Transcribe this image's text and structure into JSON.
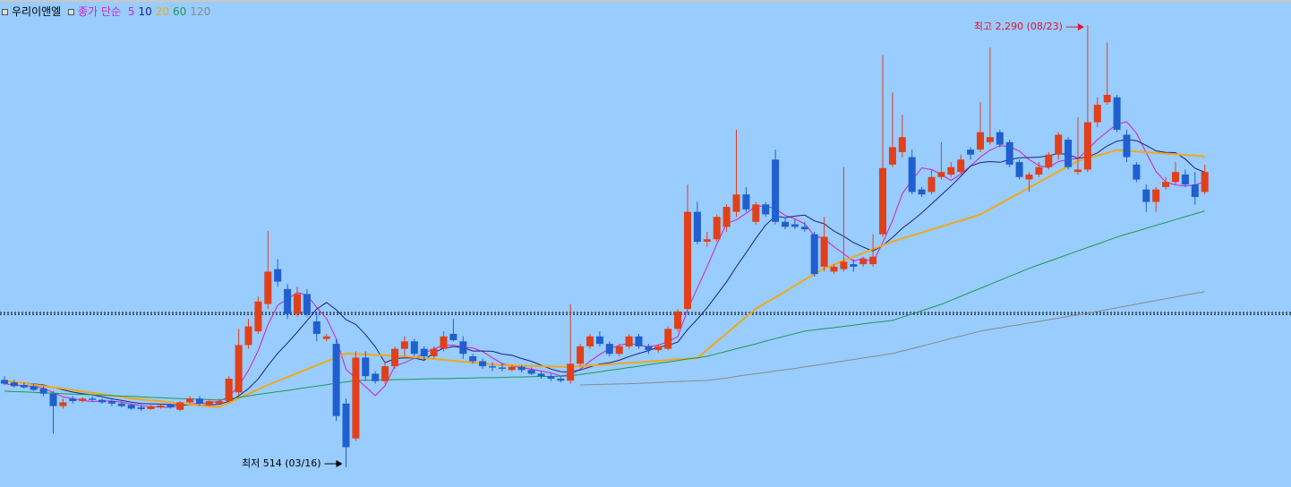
{
  "chart_data": {
    "type": "candlestick",
    "title": "우리이앤엘",
    "ma_label": "종가 단순",
    "ylim": [
      435,
      2391
    ],
    "reference_line": 1132,
    "up_color": "#e0401a",
    "down_color": "#1f5fcf",
    "open": [
      865,
      855,
      845,
      840,
      830,
      810,
      760,
      790,
      780,
      790,
      785,
      780,
      770,
      765,
      755,
      748,
      755,
      765,
      745,
      775,
      790,
      765,
      770,
      780,
      815,
      1005,
      1060,
      1170,
      1310,
      1230,
      1130,
      1210,
      1100,
      1030,
      1010,
      770,
      630,
      955,
      890,
      860,
      920,
      990,
      1020,
      990,
      960,
      990,
      1050,
      1020,
      960,
      940,
      920,
      915,
      905,
      918,
      905,
      890,
      880,
      870,
      862,
      930,
      1000,
      1040,
      1010,
      970,
      1000,
      1040,
      1000,
      985,
      990,
      1070,
      1150,
      1540,
      1420,
      1430,
      1480,
      1540,
      1610,
      1500,
      1570,
      1750,
      1500,
      1490,
      1480,
      1450,
      1320,
      1300,
      1310,
      1330,
      1330,
      1330,
      1450,
      1730,
      1780,
      1760,
      1630,
      1620,
      1680,
      1690,
      1700,
      1790,
      1790,
      1820,
      1860,
      1820,
      1740,
      1670,
      1690,
      1720,
      1770,
      1830,
      1700,
      1710,
      1900,
      1980,
      2000,
      1850,
      1730,
      1630,
      1580,
      1640,
      1660,
      1690,
      1650,
      1620
    ],
    "high": [
      880,
      865,
      855,
      850,
      840,
      820,
      790,
      800,
      795,
      800,
      790,
      790,
      780,
      770,
      765,
      765,
      768,
      770,
      780,
      800,
      800,
      785,
      790,
      880,
      1070,
      1110,
      1200,
      1464,
      1350,
      1250,
      1240,
      1230,
      1140,
      1050,
      1030,
      790,
      980,
      980,
      900,
      940,
      1000,
      1040,
      1030,
      1000,
      1000,
      1060,
      1110,
      1040,
      970,
      950,
      935,
      930,
      925,
      925,
      915,
      900,
      890,
      880,
      1170,
      1010,
      1050,
      1060,
      1020,
      1010,
      1050,
      1050,
      1010,
      1010,
      1080,
      1150,
      1650,
      1580,
      1460,
      1530,
      1570,
      1870,
      1640,
      1580,
      1580,
      1790,
      1520,
      1510,
      1500,
      1460,
      1520,
      1330,
      1720,
      1350,
      1360,
      1450,
      2170,
      2020,
      1930,
      1790,
      1640,
      1710,
      1820,
      1740,
      1770,
      1800,
      1980,
      2200,
      1870,
      1830,
      1750,
      1700,
      1740,
      1780,
      1860,
      1840,
      1920,
      2290,
      2000,
      2220,
      2010,
      1870,
      1740,
      1650,
      1640,
      1680,
      1740,
      1710,
      1700,
      1730
    ],
    "low": [
      845,
      835,
      830,
      820,
      800,
      650,
      750,
      770,
      775,
      780,
      770,
      760,
      755,
      745,
      740,
      745,
      750,
      750,
      740,
      770,
      760,
      760,
      765,
      775,
      805,
      990,
      1050,
      1150,
      1240,
      1110,
      1120,
      1120,
      1020,
      1020,
      700,
      514,
      620,
      860,
      850,
      850,
      910,
      960,
      960,
      940,
      950,
      980,
      1020,
      950,
      930,
      910,
      900,
      900,
      900,
      895,
      885,
      870,
      860,
      855,
      850,
      920,
      990,
      1000,
      960,
      960,
      990,
      990,
      970,
      975,
      985,
      1060,
      1140,
      1410,
      1400,
      1420,
      1460,
      1520,
      1540,
      1490,
      1520,
      1490,
      1470,
      1470,
      1460,
      1280,
      1300,
      1290,
      1300,
      1300,
      1320,
      1320,
      1440,
      1720,
      1760,
      1610,
      1600,
      1610,
      1670,
      1680,
      1690,
      1750,
      1780,
      1810,
      1800,
      1720,
      1670,
      1620,
      1680,
      1710,
      1750,
      1710,
      1690,
      1700,
      1880,
      1970,
      1860,
      1740,
      1660,
      1540,
      1540,
      1630,
      1650,
      1640,
      1570,
      1610
    ],
    "close": [
      850,
      840,
      835,
      825,
      810,
      760,
      775,
      780,
      790,
      785,
      775,
      770,
      760,
      750,
      748,
      760,
      762,
      755,
      775,
      790,
      770,
      780,
      780,
      870,
      1005,
      1080,
      1180,
      1300,
      1260,
      1130,
      1210,
      1130,
      1050,
      1040,
      720,
      595,
      955,
      880,
      860,
      920,
      990,
      1020,
      970,
      960,
      990,
      1040,
      1025,
      970,
      940,
      920,
      915,
      910,
      918,
      905,
      890,
      880,
      870,
      862,
      930,
      1000,
      1040,
      1010,
      970,
      1000,
      1040,
      1000,
      985,
      1000,
      1070,
      1140,
      1540,
      1420,
      1430,
      1520,
      1560,
      1610,
      1550,
      1570,
      1530,
      1500,
      1480,
      1480,
      1470,
      1290,
      1440,
      1320,
      1340,
      1320,
      1350,
      1360,
      1716,
      1800,
      1840,
      1620,
      1610,
      1680,
      1700,
      1720,
      1750,
      1770,
      1860,
      1840,
      1810,
      1730,
      1680,
      1690,
      1720,
      1770,
      1850,
      1720,
      1710,
      1900,
      1970,
      2010,
      1870,
      1760,
      1670,
      1580,
      1630,
      1660,
      1700,
      1650,
      1600,
      1700
    ],
    "series": [
      {
        "name": "5",
        "color": "#d21fc8",
        "values": [
          850,
          845,
          842,
          838,
          832,
          814,
          797,
          790,
          783,
          778,
          781,
          780,
          776,
          768,
          761,
          757,
          756,
          755,
          760,
          768,
          770,
          774,
          779,
          798,
          841,
          903,
          983,
          1087,
          1165,
          1190,
          1216,
          1206,
          1156,
          1112,
          1030,
          907,
          872,
          838,
          802,
          842,
          921,
          934,
          952,
          972,
          990,
          1004,
          1005,
          997,
          993,
          979,
          954,
          931,
          921,
          914,
          908,
          901,
          893,
          881,
          887,
          908,
          940,
          968,
          990,
          1004,
          1012,
          1004,
          999,
          1005,
          1019,
          1039,
          1147,
          1234,
          1320,
          1410,
          1494,
          1508,
          1534,
          1562,
          1564,
          1552,
          1526,
          1512,
          1492,
          1444,
          1432,
          1400,
          1372,
          1342,
          1354,
          1338,
          1417,
          1505,
          1613,
          1667,
          1717,
          1710,
          1690,
          1666,
          1692,
          1724,
          1760,
          1788,
          1806,
          1802,
          1784,
          1750,
          1726,
          1718,
          1742,
          1750,
          1754,
          1790,
          1830,
          1862,
          1892,
          1902,
          1856,
          1778,
          1702,
          1660,
          1648,
          1644,
          1648,
          1662
        ]
      },
      {
        "name": "10",
        "color": "#1a237e",
        "values": [
          860,
          857,
          853,
          849,
          845,
          835,
          825,
          816,
          810,
          805,
          797,
          789,
          783,
          776,
          770,
          769,
          768,
          766,
          764,
          765,
          764,
          765,
          767,
          779,
          801,
          830,
          869,
          923,
          972,
          1013,
          1057,
          1103,
          1150,
          1176,
          1147,
          1107,
          1088,
          1047,
          998,
          934,
          951,
          954,
          953,
          944,
          975,
          992,
          999,
          995,
          981,
          981,
          980,
          969,
          964,
          951,
          940,
          924,
          909,
          898,
          897,
          905,
          917,
          929,
          934,
          944,
          959,
          971,
          983,
          997,
          1004,
          1017,
          1067,
          1109,
          1155,
          1207,
          1259,
          1320,
          1376,
          1434,
          1487,
          1523,
          1517,
          1523,
          1527,
          1504,
          1492,
          1463,
          1442,
          1417,
          1399,
          1382,
          1405,
          1437,
          1474,
          1504,
          1536,
          1572,
          1608,
          1644,
          1683,
          1724,
          1738,
          1742,
          1739,
          1750,
          1757,
          1758,
          1760,
          1765,
          1775,
          1770,
          1755,
          1761,
          1777,
          1805,
          1824,
          1831,
          1826,
          1807,
          1785,
          1779,
          1778,
          1752,
          1715,
          1699
        ]
      },
      {
        "name": "20",
        "color": "#f0a818",
        "values": [
          863,
          857,
          852,
          846,
          841,
          835,
          830,
          824,
          819,
          813,
          808,
          802,
          797,
          791,
          787,
          783,
          779,
          775,
          771,
          767,
          763,
          759,
          755,
          773,
          791,
          809,
          827,
          845,
          861,
          876,
          892,
          908,
          924,
          939,
          955,
          971,
          969,
          967,
          965,
          964,
          962,
          960,
          956,
          953,
          949,
          946,
          942,
          938,
          935,
          931,
          928,
          924,
          923,
          922,
          921,
          920,
          919,
          918,
          917,
          920,
          923,
          925,
          928,
          931,
          934,
          936,
          939,
          942,
          945,
          948,
          950,
          953,
          986,
          1019,
          1052,
          1085,
          1118,
          1151,
          1174,
          1197,
          1220,
          1244,
          1267,
          1290,
          1313,
          1328,
          1344,
          1359,
          1375,
          1390,
          1406,
          1421,
          1433,
          1445,
          1457,
          1469,
          1481,
          1493,
          1505,
          1517,
          1529,
          1551,
          1572,
          1594,
          1615,
          1637,
          1659,
          1680,
          1702,
          1723,
          1745,
          1756,
          1766,
          1777,
          1788,
          1785,
          1782,
          1780,
          1777,
          1774,
          1771,
          1769,
          1766,
          1763
        ]
      },
      {
        "name": "60",
        "color": "#1a9a50",
        "values": [
          820,
          818,
          817,
          815,
          813,
          812,
          810,
          808,
          807,
          805,
          804,
          802,
          800,
          799,
          797,
          795,
          794,
          792,
          790,
          789,
          787,
          786,
          784,
          790,
          795,
          801,
          807,
          812,
          818,
          823,
          829,
          835,
          840,
          846,
          852,
          857,
          863,
          864,
          865,
          865,
          866,
          867,
          868,
          869,
          870,
          870,
          871,
          872,
          873,
          874,
          874,
          875,
          876,
          877,
          878,
          879,
          879,
          880,
          881,
          887,
          892,
          898,
          904,
          909,
          915,
          920,
          926,
          932,
          937,
          943,
          949,
          954,
          960,
          970,
          980,
          990,
          1000,
          1010,
          1021,
          1031,
          1041,
          1051,
          1061,
          1066,
          1071,
          1075,
          1080,
          1085,
          1090,
          1095,
          1099,
          1104,
          1117,
          1130,
          1143,
          1156,
          1169,
          1185,
          1201,
          1217,
          1233,
          1249,
          1265,
          1281,
          1297,
          1313,
          1327,
          1341,
          1355,
          1369,
          1383,
          1397,
          1411,
          1425,
          1439,
          1451,
          1462,
          1474,
          1486,
          1497,
          1509,
          1521,
          1532,
          1544
        ]
      },
      {
        "name": "120",
        "color": "#8a8a8a",
        "values": [
          null,
          null,
          null,
          null,
          null,
          null,
          null,
          null,
          null,
          null,
          null,
          null,
          null,
          null,
          null,
          null,
          null,
          null,
          null,
          null,
          null,
          null,
          null,
          null,
          null,
          null,
          null,
          null,
          null,
          null,
          null,
          null,
          null,
          null,
          null,
          null,
          null,
          null,
          null,
          null,
          null,
          null,
          null,
          null,
          null,
          null,
          null,
          null,
          null,
          null,
          null,
          null,
          null,
          null,
          null,
          null,
          null,
          null,
          null,
          845,
          846,
          847,
          848,
          849,
          850,
          851,
          853,
          855,
          857,
          859,
          860,
          862,
          863,
          868,
          873,
          879,
          885,
          890,
          895,
          901,
          906,
          911,
          917,
          923,
          929,
          935,
          941,
          947,
          953,
          959,
          965,
          971,
          981,
          991,
          1001,
          1011,
          1021,
          1031,
          1041,
          1051,
          1061,
          1068,
          1074,
          1081,
          1087,
          1094,
          1100,
          1107,
          1113,
          1120,
          1126,
          1133,
          1140,
          1148,
          1155,
          1162,
          1169,
          1177,
          1184,
          1191,
          1198,
          1206,
          1213,
          1220
        ]
      }
    ],
    "annotations": [
      {
        "text": "최고 2,290 (08/23)",
        "color": "#e8102a"
      },
      {
        "text": "최저 514 (03/16)",
        "color": "#000000"
      }
    ]
  }
}
